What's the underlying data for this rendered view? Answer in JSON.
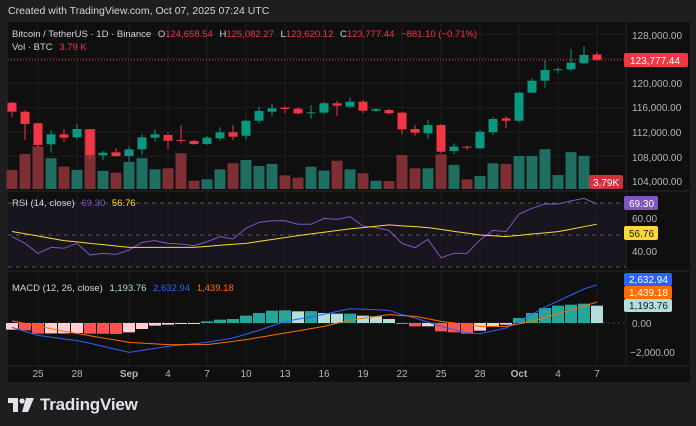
{
  "credit": "Created with TradingView.com, Oct 07, 2025 07:24 UTC",
  "legend": {
    "symbol": "Bitcoin / TetherUS · 1D · Binance",
    "o_label": "O",
    "o": "124,658.54",
    "h_label": "H",
    "h": "125,082.27",
    "l_label": "L",
    "l": "123,620.12",
    "c_label": "C",
    "c": "123,777.44",
    "change": "−881.10 (−0.71%)",
    "vol_label": "Vol · BTC",
    "vol": "3.79 K"
  },
  "rsi_legend": {
    "label": "RSI (14, close)",
    "rsi": "69.30",
    "ma": "56.76"
  },
  "macd_legend": {
    "label": "MACD (12, 26, close)",
    "hist": "1,193.76",
    "macd": "2,632.94",
    "signal": "1,439.18"
  },
  "price_axis": [
    "128,000.00",
    "120,000.00",
    "116,000.00",
    "112,000.00",
    "108,000.00",
    "104,000.00"
  ],
  "current_price_badge": "123,777.44",
  "volume_badge": "3.79K",
  "rsi_axis": [
    "60.00",
    "40.00"
  ],
  "rsi_badges": {
    "rsi": "69.30",
    "ma": "56.76"
  },
  "macd_axis": [
    "0.00",
    "−2,000.00"
  ],
  "macd_badges": {
    "macd": "2,632.94",
    "signal": "1,439.18",
    "hist": "1,193.76"
  },
  "time_axis": [
    "25",
    "28",
    "Sep",
    "4",
    "7",
    "10",
    "13",
    "16",
    "19",
    "22",
    "25",
    "28",
    "Oct",
    "4",
    "7"
  ],
  "logo_text": "TradingView",
  "colors": {
    "up": "#089981",
    "down": "#f23645",
    "rsi": "#7e57c2",
    "rsi_ma": "#fdd835",
    "macd": "#2962ff",
    "signal": "#ff6d00",
    "hist_up_strong": "#26a69a",
    "hist_up_weak": "#b2dfdb",
    "hist_down_strong": "#ff5252",
    "hist_down_weak": "#ffcdd2"
  },
  "chart_data": [
    {
      "type": "candlestick",
      "title": "Bitcoin / TetherUS · 1D · Binance",
      "x_start": "2025-08-23",
      "x_end": "2025-10-07",
      "ylim": [
        104000,
        128000
      ],
      "grid": true,
      "columns": [
        "open",
        "high",
        "low",
        "close"
      ],
      "candles": [
        [
          116780,
          116950,
          114400,
          115310
        ],
        [
          115310,
          115590,
          110690,
          113300
        ],
        [
          113420,
          113500,
          109340,
          109880
        ],
        [
          109990,
          112320,
          108620,
          111620
        ],
        [
          111620,
          112490,
          110420,
          111070
        ],
        [
          111130,
          113300,
          110800,
          112490
        ],
        [
          112440,
          112490,
          107540,
          108240
        ],
        [
          108190,
          108890,
          107420,
          108620
        ],
        [
          108680,
          109340,
          107970,
          108080
        ],
        [
          108080,
          109720,
          107150,
          109170
        ],
        [
          109170,
          111620,
          108240,
          111130
        ],
        [
          111070,
          112440,
          110420,
          111620
        ],
        [
          111510,
          111890,
          109170,
          110580
        ],
        [
          110700,
          113140,
          110150,
          110640
        ],
        [
          110530,
          110700,
          109900,
          110040
        ],
        [
          110040,
          111340,
          109880,
          111070
        ],
        [
          110970,
          112760,
          110580,
          111950
        ],
        [
          111950,
          113140,
          110690,
          111230
        ],
        [
          111390,
          114070,
          110800,
          113840
        ],
        [
          113840,
          116130,
          113420,
          115430
        ],
        [
          115310,
          116570,
          114610,
          115870
        ],
        [
          115980,
          116240,
          115050,
          115750
        ],
        [
          115810,
          116100,
          114900,
          115050
        ],
        [
          115160,
          116410,
          114230,
          115220
        ],
        [
          115160,
          116900,
          114900,
          116690
        ],
        [
          116690,
          117110,
          114610,
          116300
        ],
        [
          116140,
          117660,
          115900,
          116950
        ],
        [
          116950,
          117200,
          115050,
          115480
        ],
        [
          115480,
          115900,
          115300,
          115750
        ],
        [
          115590,
          115800,
          114900,
          115050
        ],
        [
          115160,
          115300,
          111620,
          112440
        ],
        [
          112490,
          113140,
          111390,
          111890
        ],
        [
          111790,
          113960,
          110850,
          113140
        ],
        [
          113140,
          113300,
          108520,
          108780
        ],
        [
          108890,
          110150,
          108400,
          109610
        ],
        [
          109610,
          109800,
          109060,
          109440
        ],
        [
          109340,
          112320,
          109200,
          112050
        ],
        [
          111950,
          114400,
          111510,
          114120
        ],
        [
          114230,
          114610,
          112600,
          113840
        ],
        [
          113840,
          118580,
          113600,
          118420
        ],
        [
          118420,
          120770,
          118310,
          120380
        ],
        [
          120380,
          123760,
          119230,
          122120
        ],
        [
          122120,
          122560,
          121580,
          122250
        ],
        [
          122230,
          125550,
          121950,
          123320
        ],
        [
          123220,
          126040,
          123100,
          124570
        ],
        [
          124658.54,
          125082.27,
          123620.12,
          123777.44
        ]
      ],
      "last_price": 123777.44
    },
    {
      "type": "bar",
      "title": "Vol · BTC",
      "unit": "K BTC",
      "values": [
        10.8,
        19.8,
        24.0,
        17.4,
        12.6,
        10.8,
        33.8,
        10.2,
        9.2,
        15.3,
        17.4,
        11.1,
        11.7,
        20.2,
        4.7,
        5.5,
        11.1,
        14.5,
        16.4,
        13.0,
        14.2,
        7.7,
        6.4,
        12.6,
        10.4,
        16.0,
        11.1,
        8.9,
        4.7,
        4.5,
        19.2,
        11.7,
        11.7,
        19.6,
        13.6,
        5.5,
        7.4,
        14.5,
        14.2,
        18.7,
        18.7,
        22.5,
        7.9,
        20.8,
        18.7,
        3.79
      ]
    },
    {
      "type": "line",
      "title": "RSI (14, close)",
      "ylim": [
        26,
        76
      ],
      "bands": [
        30,
        50,
        70
      ],
      "series": [
        {
          "name": "RSI",
          "values": [
            49,
            44.8,
            38.5,
            42.3,
            41.7,
            44.8,
            37.5,
            38.5,
            37.9,
            40.6,
            45.4,
            46.5,
            44.8,
            44.4,
            43.3,
            45.8,
            49,
            47.5,
            54.2,
            57.9,
            58.9,
            58.9,
            56.7,
            56.7,
            60.4,
            59.8,
            61.5,
            55.6,
            54.6,
            52.9,
            44.8,
            42.1,
            47.3,
            35.8,
            38.5,
            38.5,
            46.9,
            52.9,
            52.1,
            63.1,
            66.7,
            69.4,
            69.4,
            71.3,
            72.9,
            69.3
          ]
        },
        {
          "name": "RSI MA",
          "values": [
            52.2,
            50.8,
            49.4,
            47.9,
            46.5,
            45.7,
            44.8,
            44.0,
            43.1,
            42.3,
            42.3,
            42.3,
            42.3,
            42.3,
            42.3,
            42.9,
            43.6,
            44.2,
            44.8,
            46.0,
            47.2,
            48.4,
            49.6,
            50.7,
            51.7,
            52.8,
            53.8,
            54.6,
            55.5,
            56.3,
            55.7,
            55.2,
            54.6,
            53.5,
            52.3,
            51.2,
            50.0,
            49.5,
            49.0,
            49.8,
            50.6,
            51.3,
            52.1,
            53.6,
            55.2,
            56.76
          ]
        }
      ]
    },
    {
      "type": "line",
      "title": "MACD (12, 26, close)",
      "ylim": [
        -2800,
        3400
      ],
      "series": [
        {
          "name": "MACD",
          "values": [
            -300,
            -580,
            -851,
            -975,
            -1100,
            -1218,
            -1400,
            -1610,
            -1820,
            -2023,
            -1890,
            -1750,
            -1610,
            -1520,
            -1430,
            -1333,
            -1185,
            -1035,
            -770,
            -500,
            -200,
            100,
            270,
            430,
            600,
            790,
            980,
            945,
            910,
            874,
            575,
            345,
            60,
            -230,
            -460,
            -690,
            -736,
            -540,
            -345,
            115,
            610,
            1100,
            1515,
            1930,
            2345,
            2632.94
          ]
        },
        {
          "name": "Signal",
          "values": [
            150,
            -30,
            -210,
            -390,
            -575,
            -725,
            -880,
            -1030,
            -1180,
            -1333,
            -1390,
            -1440,
            -1495,
            -1495,
            -1495,
            -1495,
            -1380,
            -1265,
            -1150,
            -995,
            -845,
            -690,
            -540,
            -385,
            -230,
            -15,
            200,
            325,
            450,
            575,
            520,
            460,
            290,
            115,
            0,
            -115,
            -230,
            -230,
            -230,
            -60,
            115,
            380,
            644,
            910,
            1175,
            1439.18
          ]
        },
        {
          "name": "Histogram",
          "values": [
            -460,
            -506,
            -736,
            -720,
            -720,
            -690,
            -736,
            -740,
            -760,
            -644,
            -414,
            -184,
            -115,
            -50,
            -10,
            115,
            230,
            276,
            506,
            690,
            851,
            874,
            805,
            820,
            690,
            644,
            644,
            506,
            460,
            276,
            -10,
            -230,
            -230,
            -575,
            -644,
            -736,
            -529,
            -230,
            -115,
            345,
            690,
            1035,
            1195,
            1264,
            1333,
            1193.76
          ]
        }
      ]
    }
  ]
}
